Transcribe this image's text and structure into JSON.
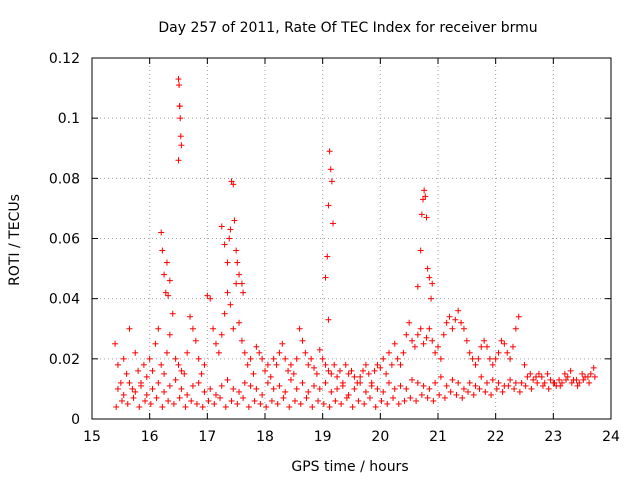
{
  "chart_data": {
    "type": "scatter",
    "title": "Day 257 of 2011, Rate Of TEC Index for receiver brmu",
    "xlabel": "GPS time / hours",
    "ylabel": "ROTI / TECUs",
    "xlim": [
      15,
      24
    ],
    "ylim": [
      0,
      0.12
    ],
    "x_ticks": [
      "15",
      "16",
      "17",
      "18",
      "19",
      "20",
      "21",
      "22",
      "23",
      "24"
    ],
    "y_ticks": [
      "0",
      "0.02",
      "0.04",
      "0.06",
      "0.08",
      "0.1",
      "0.12"
    ],
    "grid": true,
    "marker": "+",
    "color": "#ff0000",
    "series": [
      {
        "x": [
          15.4,
          15.45,
          15.5,
          15.55,
          15.6,
          15.65,
          15.7,
          15.75,
          15.8,
          15.85,
          15.9,
          15.95,
          16.0,
          16.05,
          16.1,
          16.15,
          16.2,
          16.25,
          16.3,
          16.35,
          16.4,
          16.45,
          16.5,
          16.55,
          16.6,
          16.65,
          16.7,
          16.75,
          16.8,
          16.85,
          16.9,
          16.95,
          17.0,
          17.05,
          17.1,
          17.15,
          17.2,
          17.25,
          17.3,
          17.35,
          17.4,
          17.45,
          17.5,
          17.55,
          17.6,
          17.65,
          17.7,
          17.75,
          17.8,
          17.85,
          17.9,
          17.95,
          18.0,
          18.05,
          18.1,
          18.15,
          18.2,
          18.25,
          18.3,
          18.35,
          18.4,
          18.45,
          18.5,
          18.55,
          18.6,
          18.65,
          18.7,
          18.75,
          18.8,
          18.85,
          18.9,
          18.95,
          19.0,
          19.05,
          19.1,
          19.15,
          19.2,
          19.25,
          19.3,
          19.35,
          19.4,
          19.45,
          19.5,
          19.55,
          19.6,
          19.65,
          19.7,
          19.75,
          19.8,
          19.85,
          19.9,
          19.95,
          20.0,
          20.05,
          20.1,
          20.15,
          20.2,
          20.25,
          20.3,
          20.35,
          20.4,
          20.45,
          20.5,
          20.55,
          20.6,
          20.65,
          20.7,
          20.75,
          20.8,
          20.85,
          20.9,
          20.95,
          21.0,
          21.05,
          21.1,
          21.15,
          21.2,
          21.25,
          21.3,
          21.35,
          21.4,
          21.45,
          21.5,
          21.55,
          21.6,
          21.65,
          21.7,
          21.75,
          21.8,
          21.85,
          21.9,
          21.95,
          22.0,
          22.05,
          22.1,
          22.15,
          22.2,
          22.25,
          22.3,
          22.35,
          22.4,
          22.5,
          22.6,
          22.7,
          22.8,
          22.9,
          23.0,
          23.1,
          23.2,
          23.3,
          23.4,
          23.5,
          23.6,
          23.7,
          15.45,
          15.55,
          15.65,
          15.75,
          15.85,
          15.95,
          16.05,
          16.15,
          16.25,
          16.35,
          16.45,
          16.55,
          16.65,
          16.75,
          16.85,
          16.95,
          17.05,
          17.15,
          17.25,
          17.35,
          17.45,
          17.55,
          17.65,
          17.75,
          17.85,
          17.95,
          18.05,
          18.15,
          18.25,
          18.35,
          18.45,
          18.55,
          18.65,
          18.75,
          18.85,
          18.95,
          19.05,
          19.15,
          19.25,
          19.35,
          19.45,
          19.55,
          19.65,
          19.75,
          19.85,
          19.95,
          20.05,
          20.15,
          20.25,
          20.35,
          20.45,
          20.55,
          20.65,
          20.75,
          20.85,
          20.95,
          21.05,
          21.15,
          21.25,
          21.35,
          21.45,
          21.55,
          21.65,
          21.75,
          21.85,
          21.95,
          22.05,
          22.15,
          22.25,
          22.35,
          22.45,
          22.55,
          22.65,
          22.75,
          22.85,
          22.95,
          23.05,
          23.15,
          23.25,
          23.35,
          23.45,
          23.55,
          23.65,
          15.42,
          15.52,
          15.62,
          15.72,
          15.82,
          15.92,
          16.02,
          16.12,
          16.22,
          16.32,
          16.42,
          16.52,
          16.62,
          16.72,
          16.82,
          16.92,
          17.02,
          17.12,
          17.22,
          17.32,
          17.42,
          17.52,
          17.62,
          17.72,
          17.82,
          17.92,
          18.02,
          18.12,
          18.22,
          18.32,
          18.42,
          18.52,
          18.62,
          18.72,
          18.82,
          18.92,
          19.02,
          19.12,
          19.22,
          19.32,
          19.42,
          19.52,
          19.62,
          19.72,
          19.82,
          19.92,
          20.02,
          20.12,
          20.22,
          20.32,
          20.42,
          20.52,
          20.62,
          20.72,
          20.82,
          20.92,
          21.02,
          21.12,
          21.22,
          21.32,
          21.42,
          21.52,
          21.62,
          21.72,
          21.82,
          21.92,
          22.02,
          22.12,
          22.22,
          22.32,
          22.42,
          22.52,
          22.62,
          22.72,
          22.82,
          22.92,
          23.02,
          23.12,
          23.22,
          23.32,
          23.42,
          23.52,
          23.62,
          23.72,
          16.2,
          16.22,
          16.25,
          16.28,
          16.3,
          16.32,
          16.35,
          16.5,
          16.51,
          16.52,
          16.53,
          16.54,
          16.55,
          16.5,
          16.52,
          17.25,
          17.3,
          17.35,
          17.38,
          17.4,
          17.42,
          17.45,
          17.47,
          17.5,
          17.52,
          17.55,
          17.6,
          17.62,
          19.05,
          19.08,
          19.1,
          19.12,
          19.14,
          19.16,
          19.18,
          19.1,
          20.65,
          20.7,
          20.72,
          20.74,
          20.76,
          20.78,
          20.8,
          20.82,
          20.85,
          20.88,
          20.9
        ],
        "y": [
          0.025,
          0.018,
          0.012,
          0.02,
          0.015,
          0.03,
          0.01,
          0.022,
          0.016,
          0.012,
          0.018,
          0.014,
          0.02,
          0.016,
          0.025,
          0.03,
          0.018,
          0.015,
          0.022,
          0.028,
          0.035,
          0.02,
          0.018,
          0.016,
          0.015,
          0.022,
          0.034,
          0.03,
          0.026,
          0.02,
          0.015,
          0.018,
          0.041,
          0.04,
          0.03,
          0.025,
          0.022,
          0.028,
          0.035,
          0.042,
          0.038,
          0.03,
          0.045,
          0.032,
          0.026,
          0.022,
          0.018,
          0.02,
          0.015,
          0.024,
          0.022,
          0.02,
          0.016,
          0.018,
          0.014,
          0.02,
          0.018,
          0.022,
          0.025,
          0.02,
          0.016,
          0.018,
          0.015,
          0.02,
          0.03,
          0.026,
          0.022,
          0.018,
          0.02,
          0.017,
          0.015,
          0.023,
          0.02,
          0.018,
          0.016,
          0.015,
          0.018,
          0.014,
          0.016,
          0.012,
          0.018,
          0.015,
          0.016,
          0.014,
          0.012,
          0.014,
          0.016,
          0.018,
          0.015,
          0.012,
          0.016,
          0.018,
          0.017,
          0.02,
          0.015,
          0.022,
          0.018,
          0.025,
          0.02,
          0.018,
          0.022,
          0.028,
          0.032,
          0.026,
          0.024,
          0.028,
          0.03,
          0.025,
          0.027,
          0.03,
          0.026,
          0.022,
          0.024,
          0.02,
          0.028,
          0.032,
          0.034,
          0.03,
          0.033,
          0.036,
          0.032,
          0.03,
          0.026,
          0.022,
          0.02,
          0.018,
          0.02,
          0.024,
          0.026,
          0.024,
          0.02,
          0.018,
          0.02,
          0.022,
          0.026,
          0.025,
          0.022,
          0.02,
          0.024,
          0.03,
          0.034,
          0.018,
          0.015,
          0.014,
          0.014,
          0.015,
          0.012,
          0.013,
          0.015,
          0.016,
          0.013,
          0.015,
          0.014,
          0.017,
          0.01,
          0.008,
          0.012,
          0.009,
          0.011,
          0.008,
          0.01,
          0.012,
          0.009,
          0.011,
          0.013,
          0.01,
          0.008,
          0.011,
          0.012,
          0.009,
          0.01,
          0.008,
          0.011,
          0.013,
          0.01,
          0.009,
          0.012,
          0.011,
          0.01,
          0.008,
          0.012,
          0.01,
          0.011,
          0.009,
          0.013,
          0.01,
          0.012,
          0.009,
          0.011,
          0.01,
          0.012,
          0.009,
          0.01,
          0.011,
          0.008,
          0.01,
          0.012,
          0.009,
          0.011,
          0.01,
          0.009,
          0.012,
          0.01,
          0.011,
          0.01,
          0.013,
          0.012,
          0.011,
          0.01,
          0.012,
          0.014,
          0.011,
          0.013,
          0.012,
          0.01,
          0.012,
          0.011,
          0.014,
          0.012,
          0.013,
          0.012,
          0.011,
          0.013,
          0.012,
          0.012,
          0.014,
          0.013,
          0.015,
          0.012,
          0.013,
          0.011,
          0.012,
          0.014,
          0.013,
          0.012,
          0.014,
          0.015,
          0.004,
          0.006,
          0.005,
          0.007,
          0.004,
          0.006,
          0.005,
          0.007,
          0.004,
          0.006,
          0.005,
          0.007,
          0.004,
          0.006,
          0.005,
          0.004,
          0.006,
          0.005,
          0.007,
          0.004,
          0.006,
          0.005,
          0.007,
          0.004,
          0.006,
          0.005,
          0.004,
          0.006,
          0.005,
          0.007,
          0.004,
          0.006,
          0.005,
          0.007,
          0.004,
          0.006,
          0.005,
          0.004,
          0.006,
          0.005,
          0.007,
          0.004,
          0.006,
          0.005,
          0.007,
          0.004,
          0.006,
          0.005,
          0.007,
          0.005,
          0.006,
          0.007,
          0.006,
          0.008,
          0.007,
          0.006,
          0.008,
          0.007,
          0.009,
          0.008,
          0.007,
          0.009,
          0.008,
          0.01,
          0.009,
          0.008,
          0.01,
          0.009,
          0.011,
          0.01,
          0.009,
          0.011,
          0.01,
          0.012,
          0.011,
          0.01,
          0.012,
          0.011,
          0.013,
          0.012,
          0.011,
          0.013,
          0.012,
          0.014,
          0.062,
          0.056,
          0.048,
          0.042,
          0.052,
          0.041,
          0.046,
          0.113,
          0.111,
          0.104,
          0.1,
          0.094,
          0.091,
          0.086,
          0.104,
          0.064,
          0.058,
          0.052,
          0.06,
          0.063,
          0.079,
          0.078,
          0.066,
          0.056,
          0.052,
          0.048,
          0.045,
          0.042,
          0.047,
          0.054,
          0.071,
          0.089,
          0.083,
          0.079,
          0.065,
          0.033,
          0.044,
          0.056,
          0.068,
          0.073,
          0.076,
          0.074,
          0.067,
          0.05,
          0.047,
          0.04,
          0.045
        ]
      }
    ]
  }
}
